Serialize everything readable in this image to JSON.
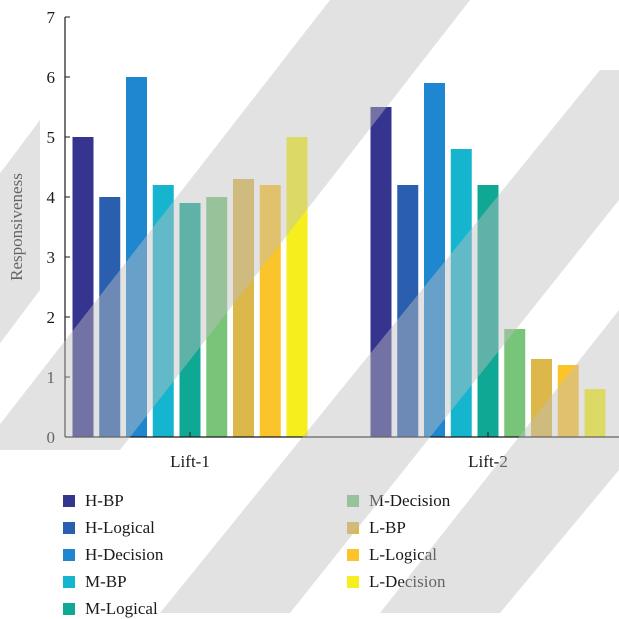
{
  "chart_data": {
    "type": "bar",
    "categories": [
      "Lift-1",
      "Lift-2"
    ],
    "ylabel": "Responsiveness",
    "xlabel": "",
    "ylim": [
      0,
      7
    ],
    "yticks": [
      0,
      1,
      2,
      3,
      4,
      5,
      6,
      7
    ],
    "grid": false,
    "legend_position": "bottom",
    "series": [
      {
        "name": "H-BP",
        "color": "#35348f",
        "values": [
          5.0,
          5.5
        ]
      },
      {
        "name": "H-Logical",
        "color": "#2a5fb0",
        "values": [
          4.0,
          4.2
        ]
      },
      {
        "name": "H-Decision",
        "color": "#1f87cf",
        "values": [
          6.0,
          5.9
        ]
      },
      {
        "name": "M-BP",
        "color": "#16b5cf",
        "values": [
          4.2,
          4.8
        ]
      },
      {
        "name": "M-Logical",
        "color": "#0fa895",
        "values": [
          3.9,
          4.2
        ]
      },
      {
        "name": "M-Decision",
        "color": "#78c57a",
        "values": [
          4.0,
          1.8
        ]
      },
      {
        "name": "L-BP",
        "color": "#dcb84a",
        "values": [
          4.3,
          1.3
        ]
      },
      {
        "name": "L-Logical",
        "color": "#fbc42a",
        "values": [
          4.2,
          1.2
        ]
      },
      {
        "name": "L-Decision",
        "color": "#f6ee1d",
        "values": [
          5.0,
          0.8
        ]
      }
    ]
  }
}
